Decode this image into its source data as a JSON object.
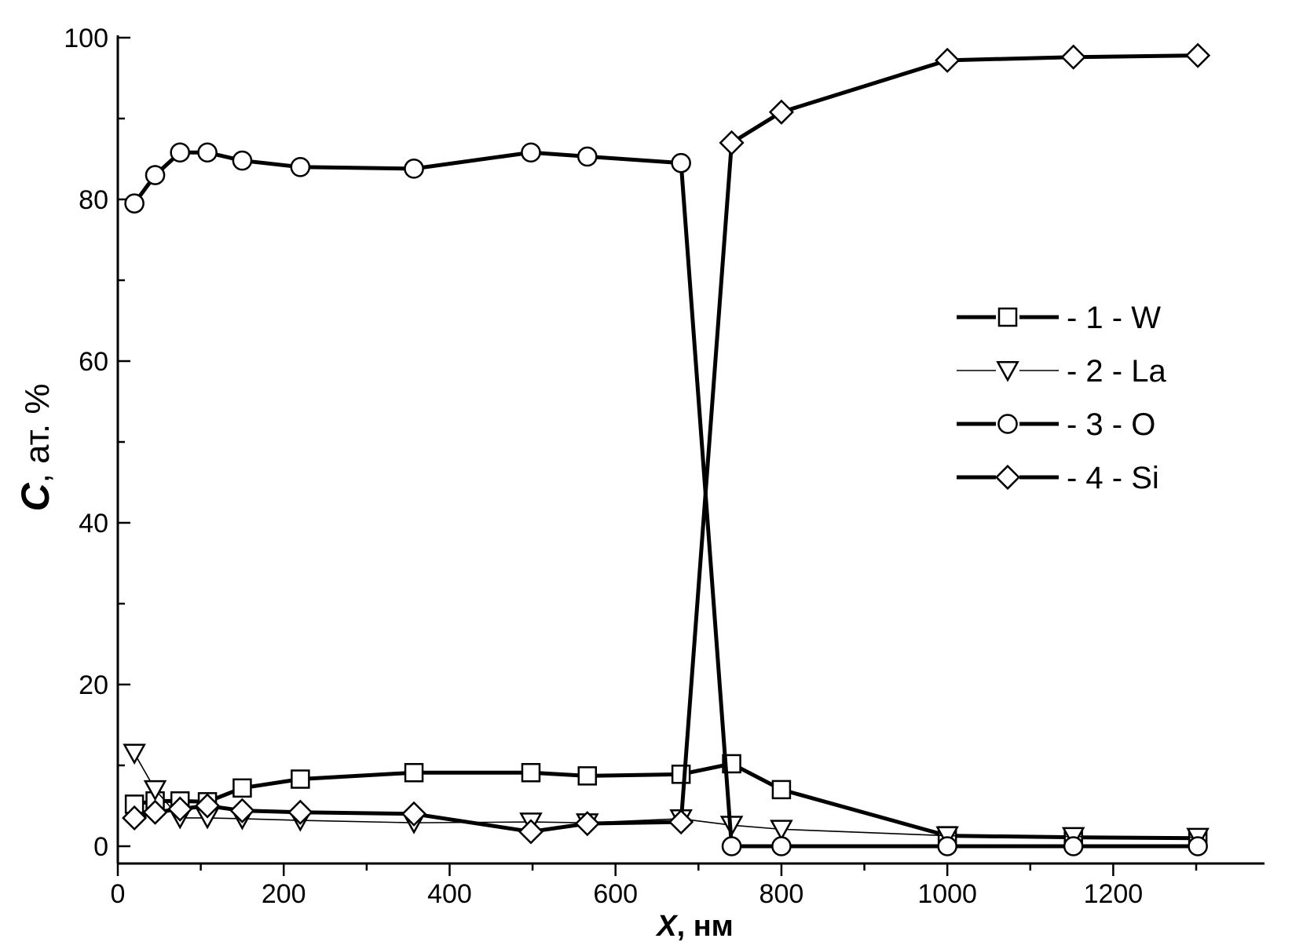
{
  "chart_data": {
    "type": "line",
    "xlabel": {
      "var": "X",
      "unit": ", нм"
    },
    "ylabel": {
      "var": "C",
      "unit": ", ат. %"
    },
    "xlim": [
      0,
      1330
    ],
    "ylim": [
      -2,
      100
    ],
    "xticks": [
      0,
      200,
      400,
      600,
      800,
      1000,
      1200
    ],
    "yticks": [
      0,
      20,
      40,
      60,
      80,
      100
    ],
    "grid": false,
    "legend_position": "center-right",
    "series": [
      {
        "name": "- 1 - W",
        "marker": "square",
        "line": "thick",
        "x": [
          20,
          45,
          75,
          108,
          150,
          220,
          357,
          498,
          566,
          679,
          740,
          800,
          1000,
          1152,
          1302
        ],
        "y": [
          5.2,
          5.6,
          5.6,
          5.5,
          7.2,
          8.3,
          9.1,
          9.1,
          8.7,
          8.9,
          10.2,
          7.0,
          1.3,
          1.1,
          1.0
        ]
      },
      {
        "name": "- 2 - La",
        "marker": "triangle-down",
        "line": "thin",
        "x": [
          20,
          45,
          75,
          108,
          150,
          220,
          357,
          498,
          566,
          679,
          740,
          800,
          1000,
          1152,
          1302
        ],
        "y": [
          11.5,
          7.0,
          3.5,
          3.5,
          3.4,
          3.2,
          2.9,
          3.0,
          2.9,
          3.4,
          2.6,
          2.1,
          1.3,
          1.2,
          1.1
        ]
      },
      {
        "name": "- 3 - O",
        "marker": "circle",
        "line": "thick",
        "x": [
          20,
          45,
          75,
          108,
          150,
          220,
          357,
          498,
          566,
          679,
          740,
          800,
          1000,
          1152,
          1302
        ],
        "y": [
          79.5,
          83.0,
          85.8,
          85.8,
          84.8,
          84.0,
          83.8,
          85.8,
          85.3,
          84.5,
          0,
          0,
          0,
          0,
          0
        ]
      },
      {
        "name": "- 4 - Si",
        "marker": "diamond",
        "line": "thick",
        "x": [
          20,
          45,
          75,
          108,
          150,
          220,
          357,
          498,
          566,
          679,
          740,
          800,
          1000,
          1152,
          1302
        ],
        "y": [
          3.5,
          4.2,
          4.6,
          5.0,
          4.4,
          4.2,
          4.0,
          1.8,
          2.8,
          3.0,
          87.0,
          90.8,
          97.2,
          97.6,
          97.8
        ]
      }
    ]
  }
}
